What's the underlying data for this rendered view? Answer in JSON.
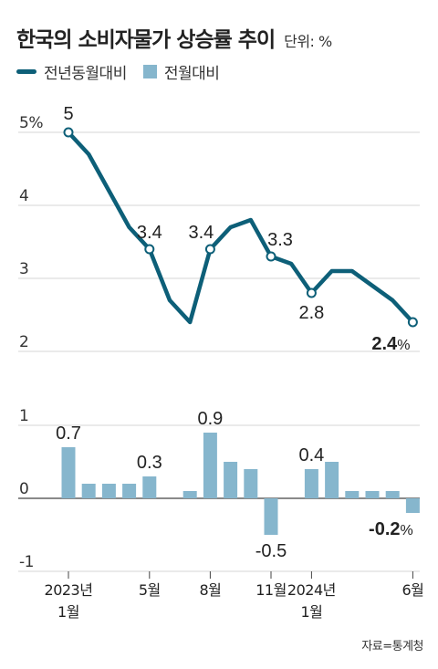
{
  "header": {
    "title": "한국의 소비자물가 상승률 추이",
    "unit": "단위: %"
  },
  "legend": {
    "line_label": "전년동월대비",
    "bar_label": "전월대비"
  },
  "source": "자료=통계청",
  "colors": {
    "line": "#0d5f78",
    "bar": "#86b6cd",
    "grid": "#d6d6d6",
    "axis": "#444444"
  },
  "chart_data": [
    {
      "type": "line",
      "name": "전년동월대비",
      "ylim": [
        2,
        5
      ],
      "yticks": [
        "2",
        "3",
        "4",
        "5%"
      ],
      "x": [
        "2023-01",
        "2023-02",
        "2023-03",
        "2023-04",
        "2023-05",
        "2023-06",
        "2023-07",
        "2023-08",
        "2023-09",
        "2023-10",
        "2023-11",
        "2023-12",
        "2024-01",
        "2024-02",
        "2024-03",
        "2024-04",
        "2024-05",
        "2024-06"
      ],
      "values": [
        5.0,
        4.7,
        4.2,
        3.7,
        3.4,
        2.7,
        2.4,
        3.4,
        3.7,
        3.8,
        3.3,
        3.2,
        2.8,
        3.1,
        3.1,
        2.9,
        2.7,
        2.4
      ],
      "data_labels": [
        {
          "index": 0,
          "text": "5"
        },
        {
          "index": 4,
          "text": "3.4"
        },
        {
          "index": 7,
          "text": "3.4"
        },
        {
          "index": 10,
          "text": "3.3"
        },
        {
          "index": 12,
          "text": "2.8"
        },
        {
          "index": 17,
          "text": "2.4",
          "suffix": "%"
        }
      ]
    },
    {
      "type": "bar",
      "name": "전월대비",
      "ylim": [
        -1,
        1
      ],
      "yticks": [
        "-1",
        "0",
        "1"
      ],
      "x": [
        "2023-01",
        "2023-02",
        "2023-03",
        "2023-04",
        "2023-05",
        "2023-06",
        "2023-07",
        "2023-08",
        "2023-09",
        "2023-10",
        "2023-11",
        "2023-12",
        "2024-01",
        "2024-02",
        "2024-03",
        "2024-04",
        "2024-05",
        "2024-06"
      ],
      "values": [
        0.7,
        0.2,
        0.2,
        0.2,
        0.3,
        0.0,
        0.1,
        0.9,
        0.5,
        0.4,
        -0.5,
        0.0,
        0.4,
        0.5,
        0.1,
        0.1,
        0.1,
        -0.2
      ],
      "data_labels": [
        {
          "index": 0,
          "text": "0.7"
        },
        {
          "index": 4,
          "text": "0.3"
        },
        {
          "index": 7,
          "text": "0.9"
        },
        {
          "index": 10,
          "text": "-0.5"
        },
        {
          "index": 12,
          "text": "0.4"
        },
        {
          "index": 17,
          "text": "-0.2",
          "suffix": "%"
        }
      ]
    }
  ],
  "x_axis": {
    "ticks": [
      {
        "index": 0,
        "line1": "2023년",
        "line2": "1월"
      },
      {
        "index": 4,
        "line1": "5월",
        "line2": ""
      },
      {
        "index": 7,
        "line1": "8월",
        "line2": ""
      },
      {
        "index": 10,
        "line1": "11월",
        "line2": ""
      },
      {
        "index": 12,
        "line1": "2024년",
        "line2": "1월"
      },
      {
        "index": 17,
        "line1": "6월",
        "line2": ""
      }
    ]
  }
}
